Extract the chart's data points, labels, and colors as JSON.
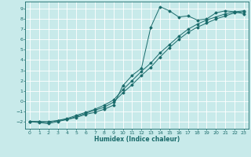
{
  "xlabel": "Humidex (Indice chaleur)",
  "bg_color": "#c8eaea",
  "grid_color": "#ffffff",
  "line_color": "#1a6b6b",
  "xlim": [
    -0.5,
    23.5
  ],
  "ylim": [
    -2.7,
    9.7
  ],
  "xticks": [
    0,
    1,
    2,
    3,
    4,
    5,
    6,
    7,
    8,
    9,
    10,
    11,
    12,
    13,
    14,
    15,
    16,
    17,
    18,
    19,
    20,
    21,
    22,
    23
  ],
  "yticks": [
    -2,
    -1,
    0,
    1,
    2,
    3,
    4,
    5,
    6,
    7,
    8,
    9
  ],
  "curve1_x": [
    0,
    1,
    2,
    3,
    4,
    5,
    6,
    7,
    8,
    9,
    10,
    11,
    12,
    13,
    14,
    15,
    16,
    17,
    18,
    19,
    20,
    21,
    22,
    23
  ],
  "curve1_y": [
    -2.0,
    -2.1,
    -2.2,
    -2.0,
    -1.8,
    -1.6,
    -1.3,
    -1.1,
    -0.8,
    -0.4,
    1.5,
    2.5,
    3.2,
    7.2,
    9.2,
    8.8,
    8.2,
    8.3,
    7.9,
    8.0,
    8.6,
    8.8,
    8.7,
    8.5
  ],
  "curve2_x": [
    0,
    1,
    2,
    3,
    4,
    5,
    6,
    7,
    8,
    9,
    10,
    11,
    12,
    13,
    14,
    15,
    16,
    17,
    18,
    19,
    20,
    21,
    22,
    23
  ],
  "curve2_y": [
    -2.0,
    -2.0,
    -2.1,
    -1.9,
    -1.8,
    -1.5,
    -1.2,
    -0.9,
    -0.6,
    -0.1,
    0.8,
    1.6,
    2.5,
    3.3,
    4.3,
    5.2,
    6.0,
    6.7,
    7.2,
    7.6,
    8.0,
    8.3,
    8.6,
    8.7
  ],
  "curve3_x": [
    0,
    1,
    2,
    3,
    4,
    5,
    6,
    7,
    8,
    9,
    10,
    11,
    12,
    13,
    14,
    15,
    16,
    17,
    18,
    19,
    20,
    21,
    22,
    23
  ],
  "curve3_y": [
    -2.0,
    -2.0,
    -2.0,
    -1.9,
    -1.7,
    -1.4,
    -1.1,
    -0.8,
    -0.4,
    0.1,
    1.1,
    2.0,
    2.9,
    3.7,
    4.7,
    5.5,
    6.3,
    7.0,
    7.5,
    7.9,
    8.2,
    8.5,
    8.7,
    8.8
  ]
}
